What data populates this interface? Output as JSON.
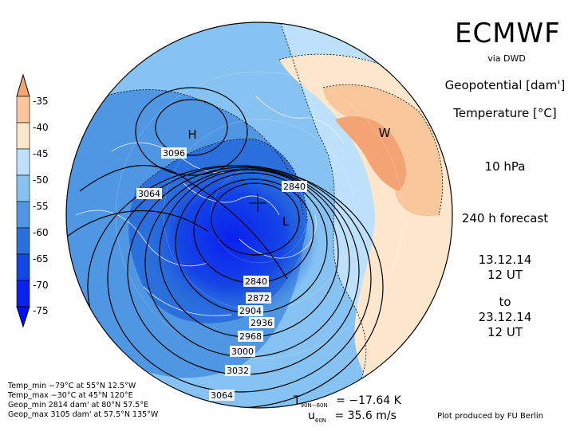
{
  "header": {
    "title": "ECMWF",
    "source": "via DWD",
    "variable1": "Geopotential [dam']",
    "variable2": "Temperature [°C]",
    "level": "10 hPa",
    "forecast": "240 h forecast",
    "init_date": "13.12.14",
    "init_time": "12 UT",
    "to_label": "to",
    "valid_date": "23.12.14",
    "valid_time": "12 UT"
  },
  "colorbar": {
    "ticks": [
      "-35",
      "-40",
      "-45",
      "-50",
      "-55",
      "-60",
      "-65",
      "-70",
      "-75"
    ],
    "colors": [
      "#f3a473",
      "#f8c79c",
      "#fde7cc",
      "#bde0fb",
      "#86c3f2",
      "#4f97e3",
      "#2a6fdc",
      "#1445e6",
      "#0a20f0",
      "#0010ff"
    ]
  },
  "map": {
    "high_label": "H",
    "low_label": "L",
    "warm_label": "W",
    "contour_labels": [
      "3096",
      "3064",
      "2840",
      "2840",
      "2872",
      "2904",
      "2936",
      "2968",
      "3000",
      "3032",
      "3064"
    ]
  },
  "footer": {
    "temp_min": "Temp_min −79°C at 55°N 12.5°W",
    "temp_max": "Temp_max −30°C at 45°N 120°E",
    "geop_min": "Geop_min 2814 dam' at 80°N 57.5°E",
    "geop_max": "Geop_max 3105 dam' at 57.5°N 135°W",
    "t_symbol": "T",
    "t_sub": "90N−60N",
    "t_value": "= −17.64 K",
    "u_symbol": "u",
    "u_sub": "60N",
    "u_value": "= 35.6 m/s",
    "credit": "Plot produced by FU Berlin"
  }
}
